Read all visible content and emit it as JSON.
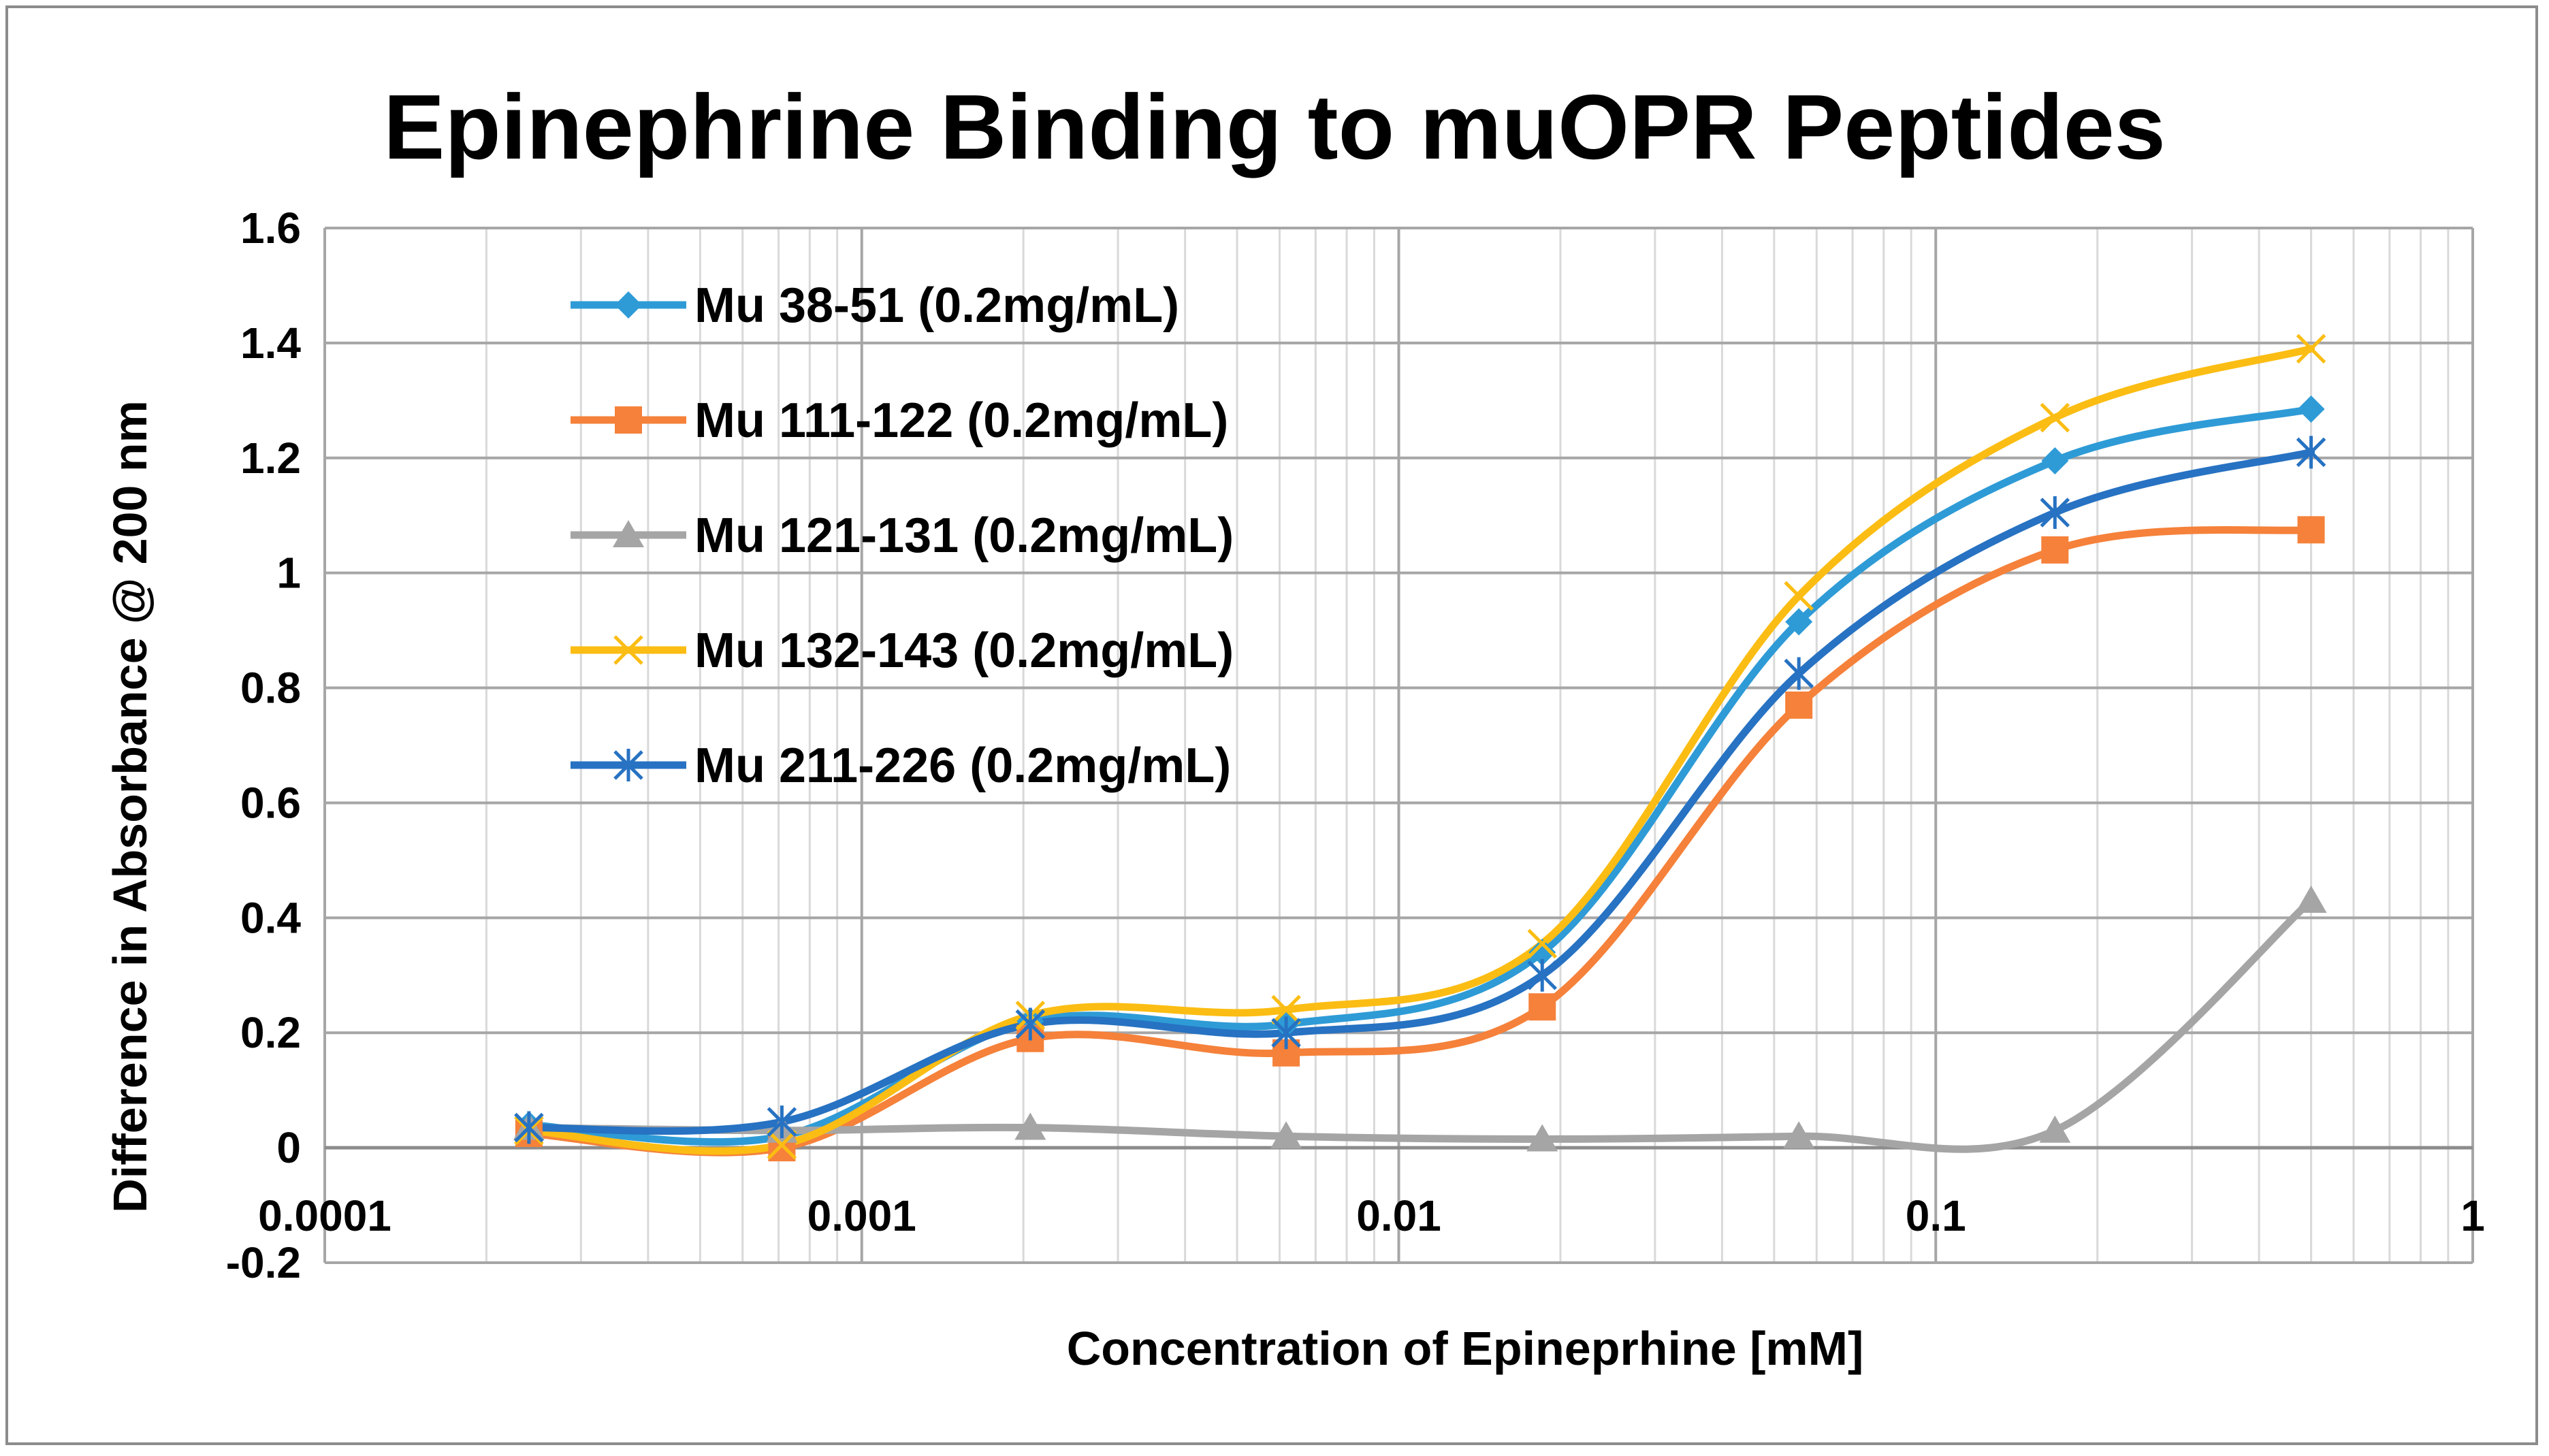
{
  "chart_data": {
    "type": "scatter",
    "title": "Epinephrine Binding to muOPR Peptides",
    "xlabel": "Concentration of Epineprhine [mM]",
    "ylabel": "Difference in Absorbance @ 200 nm",
    "xscale": "log",
    "xlim": [
      0.0001,
      1
    ],
    "ylim": [
      -0.2,
      1.6
    ],
    "x_tick_labels": [
      "0.0001",
      "0.001",
      "0.01",
      "0.1",
      "1"
    ],
    "y_tick_labels": [
      "-0.2",
      "0",
      "0.2",
      "0.4",
      "0.6",
      "0.8",
      "1",
      "1.2",
      "1.4",
      "1.6"
    ],
    "grid": true,
    "legend_position": "top-left",
    "x": [
      0.00024,
      0.00071,
      0.00206,
      0.00617,
      0.0185,
      0.0556,
      0.1667,
      0.5
    ],
    "series": [
      {
        "name": "Mu 38-51 (0.2mg/mL)",
        "color": "#2E9BD6",
        "marker": "diamond",
        "values": [
          0.04,
          0.02,
          0.22,
          0.215,
          0.34,
          0.915,
          1.195,
          1.285
        ]
      },
      {
        "name": "Mu 111-122 (0.2mg/mL)",
        "color": "#F5813A",
        "marker": "square",
        "values": [
          0.025,
          0.0,
          0.19,
          0.165,
          0.245,
          0.77,
          1.04,
          1.075
        ]
      },
      {
        "name": "Mu 121-131 (0.2mg/mL)",
        "color": "#A5A5A5",
        "marker": "triangle",
        "values": [
          0.035,
          0.03,
          0.035,
          0.02,
          0.015,
          0.02,
          0.03,
          0.43
        ]
      },
      {
        "name": "Mu 132-143 (0.2mg/mL)",
        "color": "#FBBD13",
        "marker": "x",
        "values": [
          0.03,
          0.005,
          0.23,
          0.24,
          0.355,
          0.96,
          1.27,
          1.39
        ]
      },
      {
        "name": "Mu 211-226 (0.2mg/mL)",
        "color": "#2772C2",
        "marker": "asterisk",
        "values": [
          0.035,
          0.045,
          0.215,
          0.2,
          0.3,
          0.825,
          1.105,
          1.21
        ]
      }
    ]
  }
}
